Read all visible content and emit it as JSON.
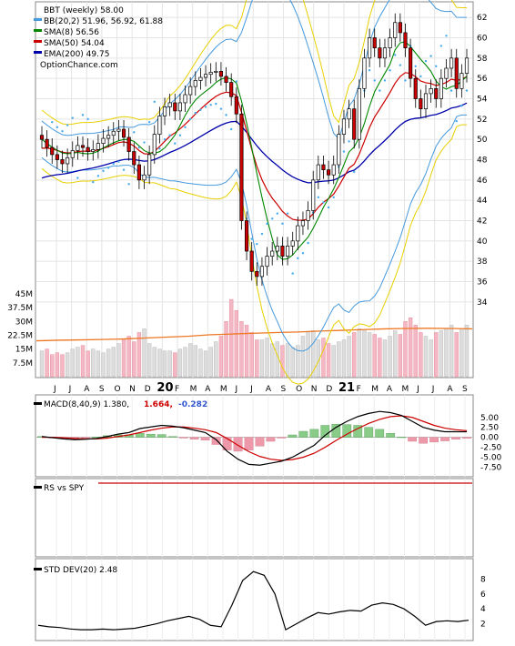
{
  "legend": {
    "price": "BBT (weekly) 58.00",
    "bb": "BB(20,2) 51.96, 56.92, 61.88",
    "sma8": "SMA(8) 56.56",
    "sma50": "SMA(50) 54.04",
    "ema200": "EMA(200) 49.75",
    "watermark": "OptionChance.com"
  },
  "macd": {
    "label": "MACD(8,40,9) 1.380,",
    "v2": "1.664,",
    "v3": "-0.282"
  },
  "rs": {
    "label": "RS vs SPY"
  },
  "stddev": {
    "label": "STD DEV(20) 2.48"
  },
  "colors": {
    "up_candle": "#ffffff",
    "down_candle": "#cc0000",
    "bb": "#4499dd",
    "bb_envelope": "#e8d000",
    "sar": "#44aaee",
    "sma8": "#008800",
    "sma50": "#cc0000",
    "ema200": "#0000aa",
    "vol_ma": "#ee7722",
    "macd_line": "#000000",
    "macd_signal": "#cc0000",
    "hist_pos": "#88cc88",
    "hist_neg": "#ee99aa"
  },
  "chart_data": [
    {
      "type": "candlestick",
      "ylim": [
        33,
        63
      ],
      "y_ticks": [
        "34",
        "36",
        "38",
        "40",
        "42",
        "44",
        "46",
        "48",
        "50",
        "52",
        "54",
        "56",
        "58",
        "60",
        "62"
      ],
      "x_labels": [
        "J",
        "J",
        "A",
        "S",
        "O",
        "N",
        "D",
        "20",
        "F",
        "M",
        "A",
        "M",
        "J",
        "J",
        "A",
        "S",
        "O",
        "N",
        "D",
        "21",
        "F",
        "M",
        "A",
        "M",
        "J",
        "J",
        "A",
        "S"
      ],
      "close": [
        50.0,
        49.2,
        48.5,
        48.0,
        47.6,
        48.2,
        48.9,
        49.4,
        49.2,
        48.8,
        49.0,
        49.6,
        50.1,
        50.4,
        50.8,
        51.0,
        50.2,
        48.8,
        47.5,
        46.0,
        46.5,
        48.5,
        50.5,
        52.3,
        53.2,
        53.6,
        52.8,
        53.6,
        54.4,
        55.2,
        55.8,
        56.1,
        56.4,
        56.6,
        56.7,
        56.2,
        55.6,
        54.2,
        52.5,
        42.0,
        39.0,
        37.0,
        36.5,
        37.5,
        38.5,
        39.0,
        39.5,
        38.5,
        39.5,
        40.0,
        41.5,
        42.0,
        43.0,
        46.0,
        47.5,
        47.0,
        46.5,
        47.5,
        50.5,
        52.0,
        53.0,
        50.0,
        55.0,
        58.0,
        60.0,
        59.0,
        58.0,
        59.0,
        60.0,
        61.5,
        60.5,
        59.0,
        56.0,
        54.0,
        53.0,
        54.5,
        55.0,
        54.0,
        56.0,
        57.0,
        58.0,
        55.0,
        56.5,
        58.0
      ],
      "volume_ylim": [
        0,
        45
      ],
      "volume_ticks": [
        "45M",
        "37.5M",
        "30M",
        "22.5M",
        "15M",
        "7.5M"
      ],
      "volume": [
        14,
        15,
        12,
        13,
        12,
        13,
        15,
        16,
        17,
        14,
        15,
        14,
        13,
        15,
        16,
        18,
        20,
        22,
        19,
        24,
        26,
        18,
        16,
        15,
        14,
        14,
        13,
        15,
        16,
        18,
        17,
        15,
        14,
        16,
        19,
        22,
        30,
        42,
        36,
        30,
        28,
        24,
        20,
        20,
        21,
        18,
        19,
        17,
        18,
        16,
        17,
        22,
        24,
        25,
        20,
        21,
        18,
        17,
        19,
        20,
        22,
        24,
        26,
        25,
        24,
        23,
        21,
        20,
        22,
        25,
        23,
        30,
        32,
        28,
        24,
        22,
        20,
        24,
        25,
        26,
        28,
        24,
        26,
        28
      ],
      "volume_ma": [
        19.5,
        19.8,
        20.0,
        20.2,
        20.5,
        21.0,
        21.5,
        22.0,
        22.8,
        23.2,
        23.6,
        24.0,
        24.3,
        24.8,
        25.2,
        25.6,
        26.0,
        26.2,
        26.3,
        26.2,
        26.0
      ]
    },
    {
      "type": "line",
      "series": [
        {
          "name": "MACD",
          "values": [
            0.2,
            -0.1,
            -0.4,
            -0.6,
            -0.5,
            -0.3,
            0.2,
            0.8,
            1.2,
            2.2,
            2.6,
            3.0,
            2.8,
            2.4,
            1.8,
            1.2,
            -0.6,
            -3.5,
            -5.5,
            -6.8,
            -7.0,
            -6.5,
            -6.0,
            -5.0,
            -3.5,
            -2.0,
            0.5,
            2.5,
            4.0,
            5.2,
            6.0,
            6.5,
            6.2,
            5.5,
            4.0,
            2.5,
            1.8,
            1.4,
            1.4,
            1.38
          ]
        },
        {
          "name": "Signal",
          "values": [
            0.0,
            0.0,
            -0.1,
            -0.3,
            -0.4,
            -0.4,
            -0.2,
            0.2,
            0.6,
            1.2,
            1.8,
            2.3,
            2.6,
            2.6,
            2.3,
            1.9,
            1.2,
            -0.3,
            -2.0,
            -3.6,
            -4.8,
            -5.5,
            -5.8,
            -5.6,
            -5.0,
            -4.0,
            -2.5,
            -0.8,
            0.8,
            2.2,
            3.5,
            4.5,
            5.2,
            5.4,
            5.0,
            4.0,
            3.0,
            2.3,
            1.9,
            1.66
          ]
        },
        {
          "name": "Histogram",
          "values": [
            0.2,
            -0.1,
            -0.3,
            -0.3,
            -0.1,
            0.1,
            0.4,
            0.6,
            0.6,
            1.0,
            0.8,
            0.7,
            0.2,
            -0.2,
            -0.5,
            -0.7,
            -1.8,
            -3.2,
            -3.5,
            -3.2,
            -2.2,
            -1.0,
            -0.2,
            0.6,
            1.5,
            2.0,
            3.0,
            3.3,
            3.2,
            3.0,
            2.5,
            2.0,
            1.0,
            0.1,
            -1.0,
            -1.5,
            -1.2,
            -0.9,
            -0.5,
            -0.28
          ]
        }
      ],
      "y_ticks": [
        "5.00",
        "2.50",
        "0.00",
        "-2.50",
        "-5.00",
        "-7.50"
      ],
      "ylim": [
        -9,
        7
      ]
    },
    {
      "type": "line",
      "series": [
        {
          "name": "RS vs SPY",
          "values": [
            1,
            1,
            1,
            1,
            1,
            1,
            1,
            1,
            1,
            1
          ]
        }
      ]
    },
    {
      "type": "line",
      "series": [
        {
          "name": "STD DEV(20)",
          "values": [
            1.8,
            1.6,
            1.5,
            1.3,
            1.2,
            1.2,
            1.3,
            1.2,
            1.3,
            1.4,
            1.7,
            2.0,
            2.4,
            2.7,
            3.0,
            2.6,
            1.8,
            1.6,
            4.5,
            7.8,
            9.0,
            8.5,
            6.0,
            1.2,
            2.0,
            2.8,
            3.5,
            3.3,
            3.6,
            3.8,
            3.7,
            4.5,
            4.8,
            4.6,
            4.0,
            3.0,
            1.8,
            2.3,
            2.4,
            2.3,
            2.48
          ]
        }
      ],
      "y_ticks": [
        "8",
        "6",
        "4",
        "2"
      ],
      "ylim": [
        0,
        10
      ]
    }
  ]
}
